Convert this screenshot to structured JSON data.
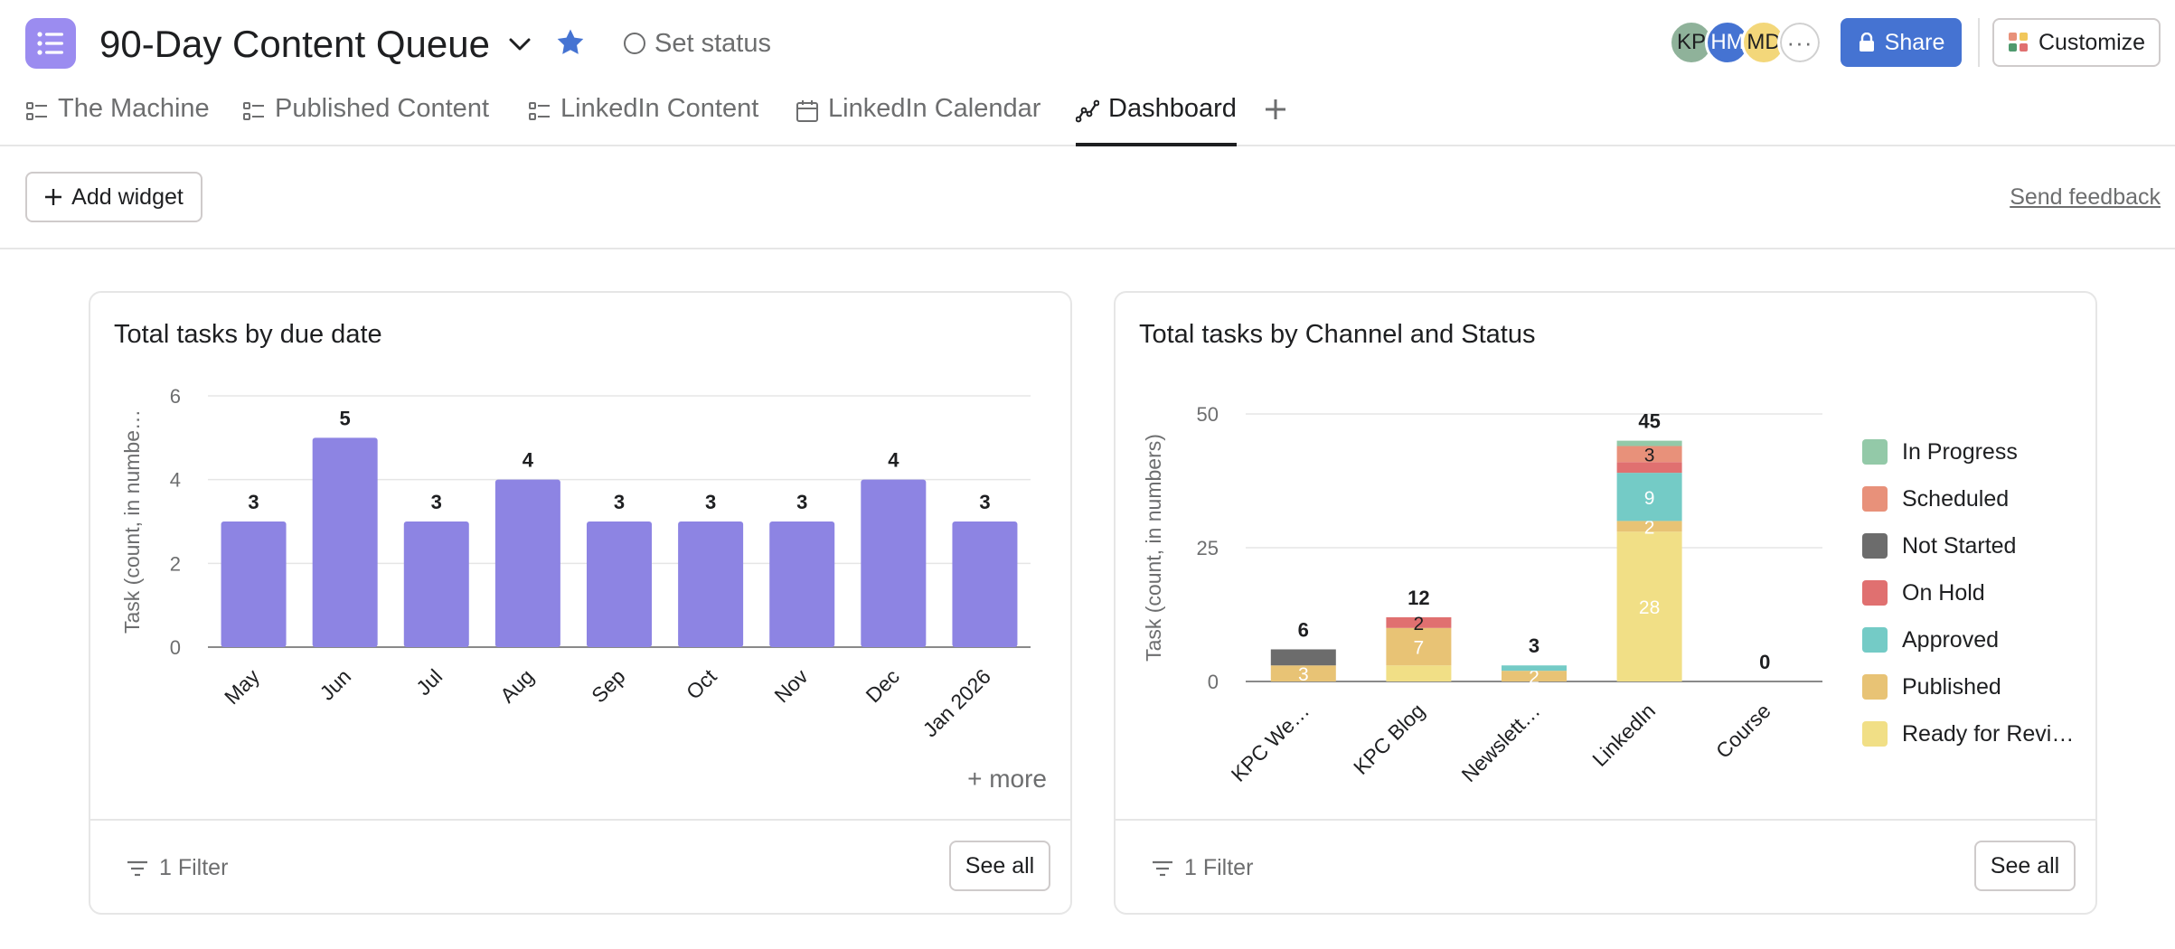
{
  "header": {
    "title": "90-Day Content Queue",
    "set_status": "Set status",
    "avatars": [
      {
        "initials": "KP",
        "color": "#8fb29a"
      },
      {
        "initials": "HM",
        "color": "#4573d2"
      },
      {
        "initials": "MD",
        "color": "#f3d77a"
      }
    ],
    "more_avatars": "···",
    "share_label": "Share",
    "customize_label": "Customize"
  },
  "tabs": [
    {
      "label": "The Machine",
      "icon": "list-icon"
    },
    {
      "label": "Published Content",
      "icon": "list-icon"
    },
    {
      "label": "LinkedIn Content",
      "icon": "list-icon"
    },
    {
      "label": "LinkedIn Calendar",
      "icon": "calendar-icon"
    },
    {
      "label": "Dashboard",
      "icon": "dashboard-icon",
      "active": true
    }
  ],
  "toolbar": {
    "add_widget": "Add widget",
    "send_feedback": "Send feedback"
  },
  "widgets": [
    {
      "title": "Total tasks by due date",
      "filter": "1 Filter",
      "see_all": "See all",
      "more": "+ more"
    },
    {
      "title": "Total tasks by Channel and Status",
      "filter": "1 Filter",
      "see_all": "See all"
    }
  ],
  "chart_data": [
    {
      "type": "bar",
      "title": "Total tasks by due date",
      "xlabel": "",
      "ylabel": "Task (count, in numbe…",
      "ylim": [
        0,
        6
      ],
      "yticks": [
        0,
        2,
        4,
        6
      ],
      "grid": true,
      "color": "#8d84e3",
      "categories": [
        "May",
        "Jun",
        "Jul",
        "Aug",
        "Sep",
        "Oct",
        "Nov",
        "Dec",
        "Jan 2026"
      ],
      "values": [
        3,
        5,
        3,
        4,
        3,
        3,
        3,
        4,
        3
      ]
    },
    {
      "type": "bar",
      "stacked": true,
      "title": "Total tasks by Channel and Status",
      "xlabel": "",
      "ylabel": "Task (count, in numbers)",
      "ylim": [
        0,
        50
      ],
      "yticks": [
        0,
        25,
        50
      ],
      "grid": true,
      "legend_position": "right",
      "categories": [
        "KPC We…",
        "KPC Blog",
        "Newslett…",
        "LinkedIn",
        "Course"
      ],
      "totals": [
        6,
        12,
        3,
        45,
        0
      ],
      "series": [
        {
          "name": "Ready for Revi…",
          "color": "#f1df86",
          "values": [
            0,
            3,
            0,
            28,
            0
          ]
        },
        {
          "name": "Published",
          "color": "#e8c375",
          "values": [
            3,
            7,
            2,
            2,
            0
          ]
        },
        {
          "name": "Approved",
          "color": "#74cbc6",
          "values": [
            0,
            0,
            1,
            9,
            0
          ]
        },
        {
          "name": "On Hold",
          "color": "#e07070",
          "values": [
            0,
            2,
            0,
            2,
            0
          ]
        },
        {
          "name": "Not Started",
          "color": "#6c6c6c",
          "values": [
            3,
            0,
            0,
            0,
            0
          ]
        },
        {
          "name": "Scheduled",
          "color": "#e8917a",
          "values": [
            0,
            0,
            0,
            3,
            0
          ]
        },
        {
          "name": "In Progress",
          "color": "#93c9a8",
          "values": [
            0,
            0,
            0,
            1,
            0
          ]
        }
      ],
      "segment_labels_shown": [
        {
          "category": "KPC We…",
          "series": "Published",
          "text": "3"
        },
        {
          "category": "KPC Blog",
          "series": "Published",
          "text": "7"
        },
        {
          "category": "KPC Blog",
          "series": "On Hold",
          "text": "2"
        },
        {
          "category": "Newslett…",
          "series": "Published",
          "text": "2"
        },
        {
          "category": "LinkedIn",
          "series": "Ready for Revi…",
          "text": "28"
        },
        {
          "category": "LinkedIn",
          "series": "Published",
          "text": "2"
        },
        {
          "category": "LinkedIn",
          "series": "Approved",
          "text": "9"
        },
        {
          "category": "LinkedIn",
          "series": "Scheduled",
          "text": "3"
        }
      ],
      "legend_order": [
        "In Progress",
        "Scheduled",
        "Not Started",
        "On Hold",
        "Approved",
        "Published",
        "Ready for Revi…"
      ]
    }
  ]
}
